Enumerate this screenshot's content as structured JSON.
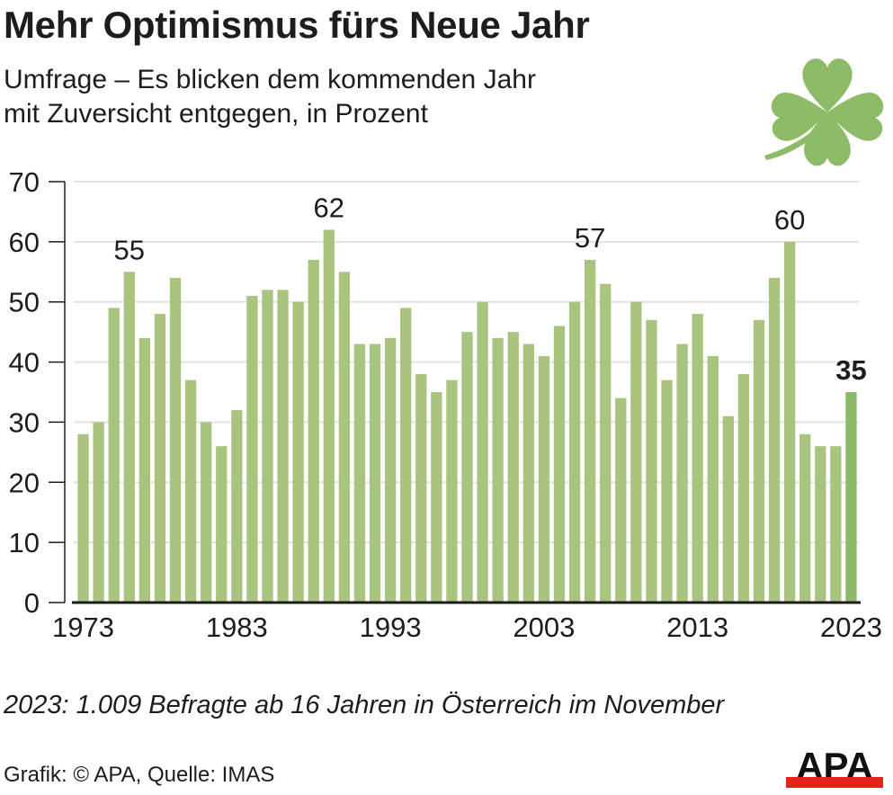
{
  "header": {
    "title": "Mehr Optimismus fürs Neue Jahr",
    "subtitle_line1": "Umfrage – Es blicken dem kommenden Jahr",
    "subtitle_line2": "mit Zuversicht entgegen, in Prozent"
  },
  "footer": {
    "note": "2023: 1.009 Befragte ab 16 Jahren in Österreich im November",
    "source": "Grafik: © APA, Quelle: IMAS",
    "logo_text": "APA"
  },
  "colors": {
    "bar": "#a9c47f",
    "bar_highlight": "#8dba68",
    "grid": "#e3e3e3",
    "axis": "#1d1d1b",
    "clover": "#8dbb67",
    "logo_red": "#e3231b"
  },
  "chart_data": {
    "type": "bar",
    "title": "Mehr Optimismus fürs Neue Jahr",
    "subtitle": "Umfrage – Es blicken dem kommenden Jahr mit Zuversicht entgegen, in Prozent",
    "xlabel": "",
    "ylabel": "Prozent",
    "ylim": [
      0,
      70
    ],
    "yticks": [
      0,
      10,
      20,
      30,
      40,
      50,
      60,
      70
    ],
    "xtick_labels": [
      "1973",
      "1983",
      "1993",
      "2003",
      "2013",
      "2023"
    ],
    "grid": true,
    "categories": [
      1973,
      1974,
      1975,
      1976,
      1977,
      1978,
      1979,
      1980,
      1981,
      1982,
      1983,
      1984,
      1985,
      1986,
      1987,
      1988,
      1989,
      1990,
      1991,
      1992,
      1993,
      1994,
      1995,
      1996,
      1997,
      1998,
      1999,
      2000,
      2001,
      2002,
      2003,
      2004,
      2005,
      2006,
      2007,
      2008,
      2009,
      2010,
      2011,
      2012,
      2013,
      2014,
      2015,
      2016,
      2017,
      2018,
      2019,
      2020,
      2021,
      2022,
      2023
    ],
    "values": [
      28,
      30,
      49,
      55,
      44,
      48,
      54,
      37,
      30,
      26,
      32,
      51,
      52,
      52,
      50,
      57,
      62,
      55,
      43,
      43,
      44,
      49,
      38,
      35,
      37,
      45,
      50,
      44,
      45,
      43,
      41,
      46,
      50,
      57,
      53,
      34,
      50,
      47,
      37,
      43,
      48,
      41,
      31,
      38,
      47,
      54,
      60,
      28,
      26,
      26,
      35
    ],
    "annotations": [
      {
        "year": 1976,
        "label": "55",
        "bold": false
      },
      {
        "year": 1989,
        "label": "62",
        "bold": false
      },
      {
        "year": 2006,
        "label": "57",
        "bold": false
      },
      {
        "year": 2019,
        "label": "60",
        "bold": false
      },
      {
        "year": 2023,
        "label": "35",
        "bold": true
      }
    ],
    "highlight": 2023
  }
}
